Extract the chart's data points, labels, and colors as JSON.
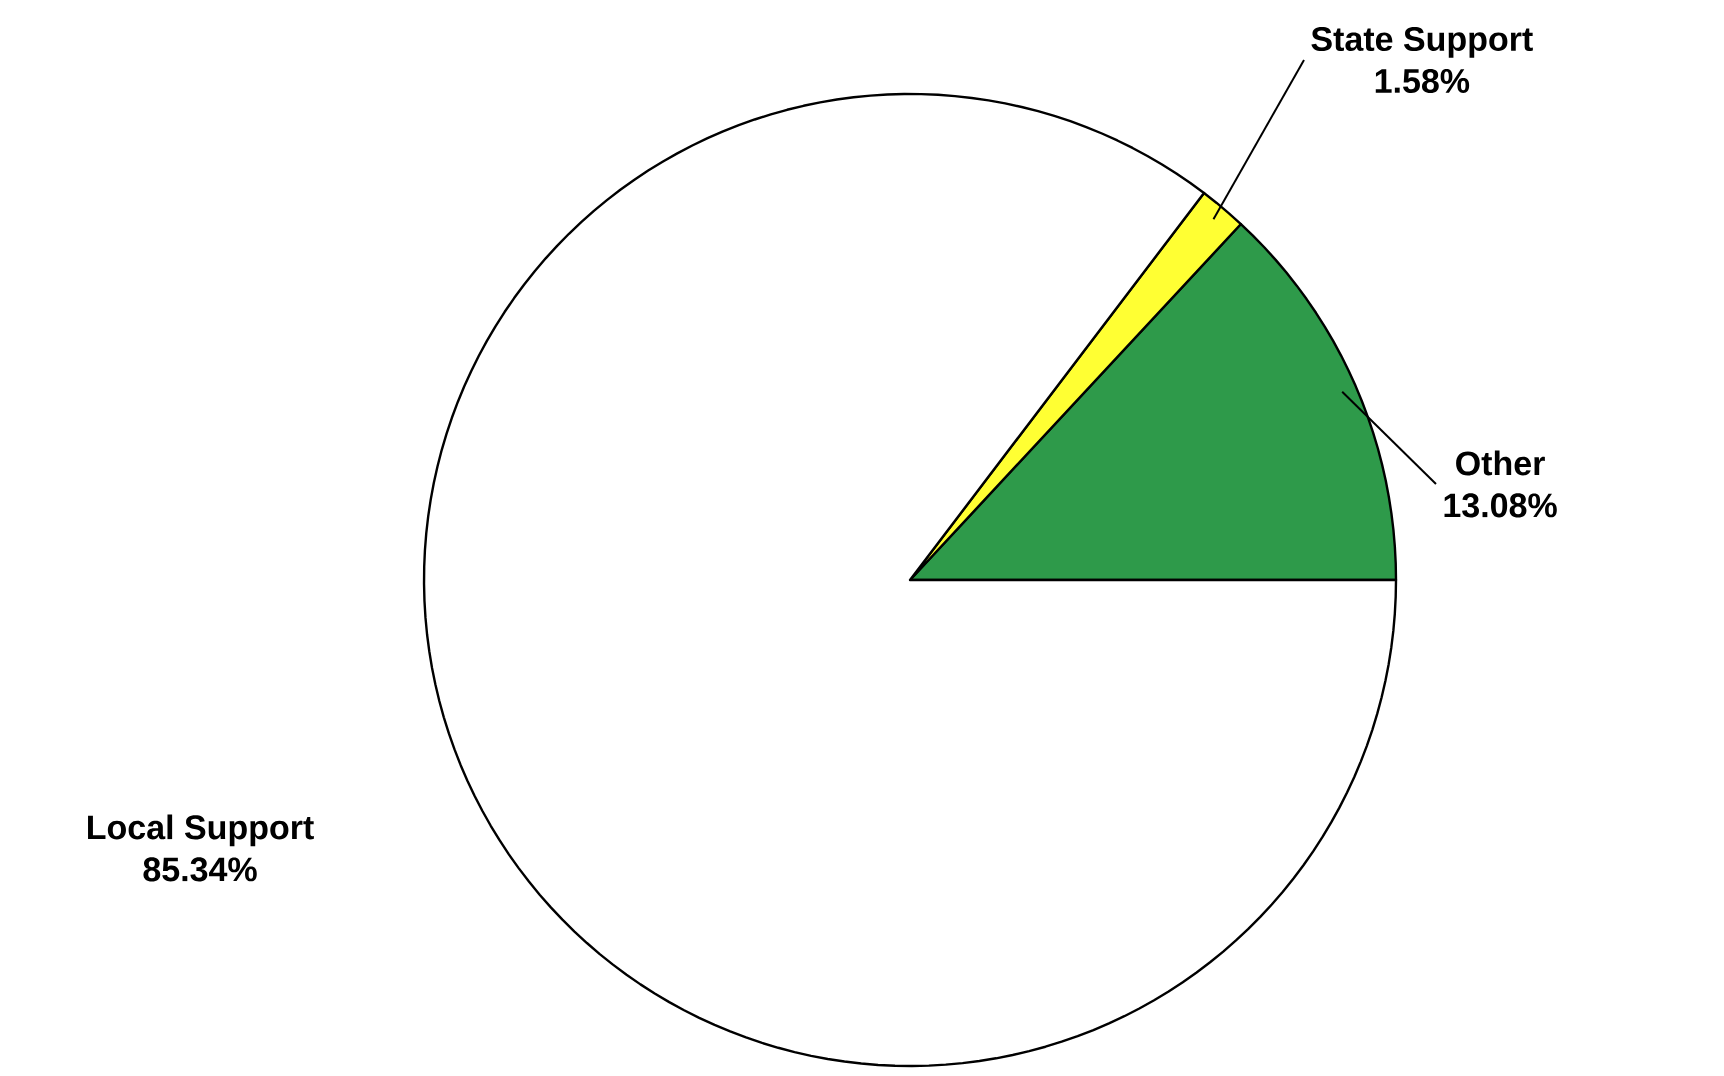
{
  "chart_data": {
    "type": "pie",
    "categories": [
      "Other",
      "State Support",
      "Local Support"
    ],
    "values": [
      13.08,
      1.58,
      85.34
    ],
    "value_labels": [
      "13.08%",
      "1.58%",
      "85.34%"
    ],
    "colors": [
      "#2e9a4a",
      "#ffff33",
      "#ffffff"
    ]
  }
}
